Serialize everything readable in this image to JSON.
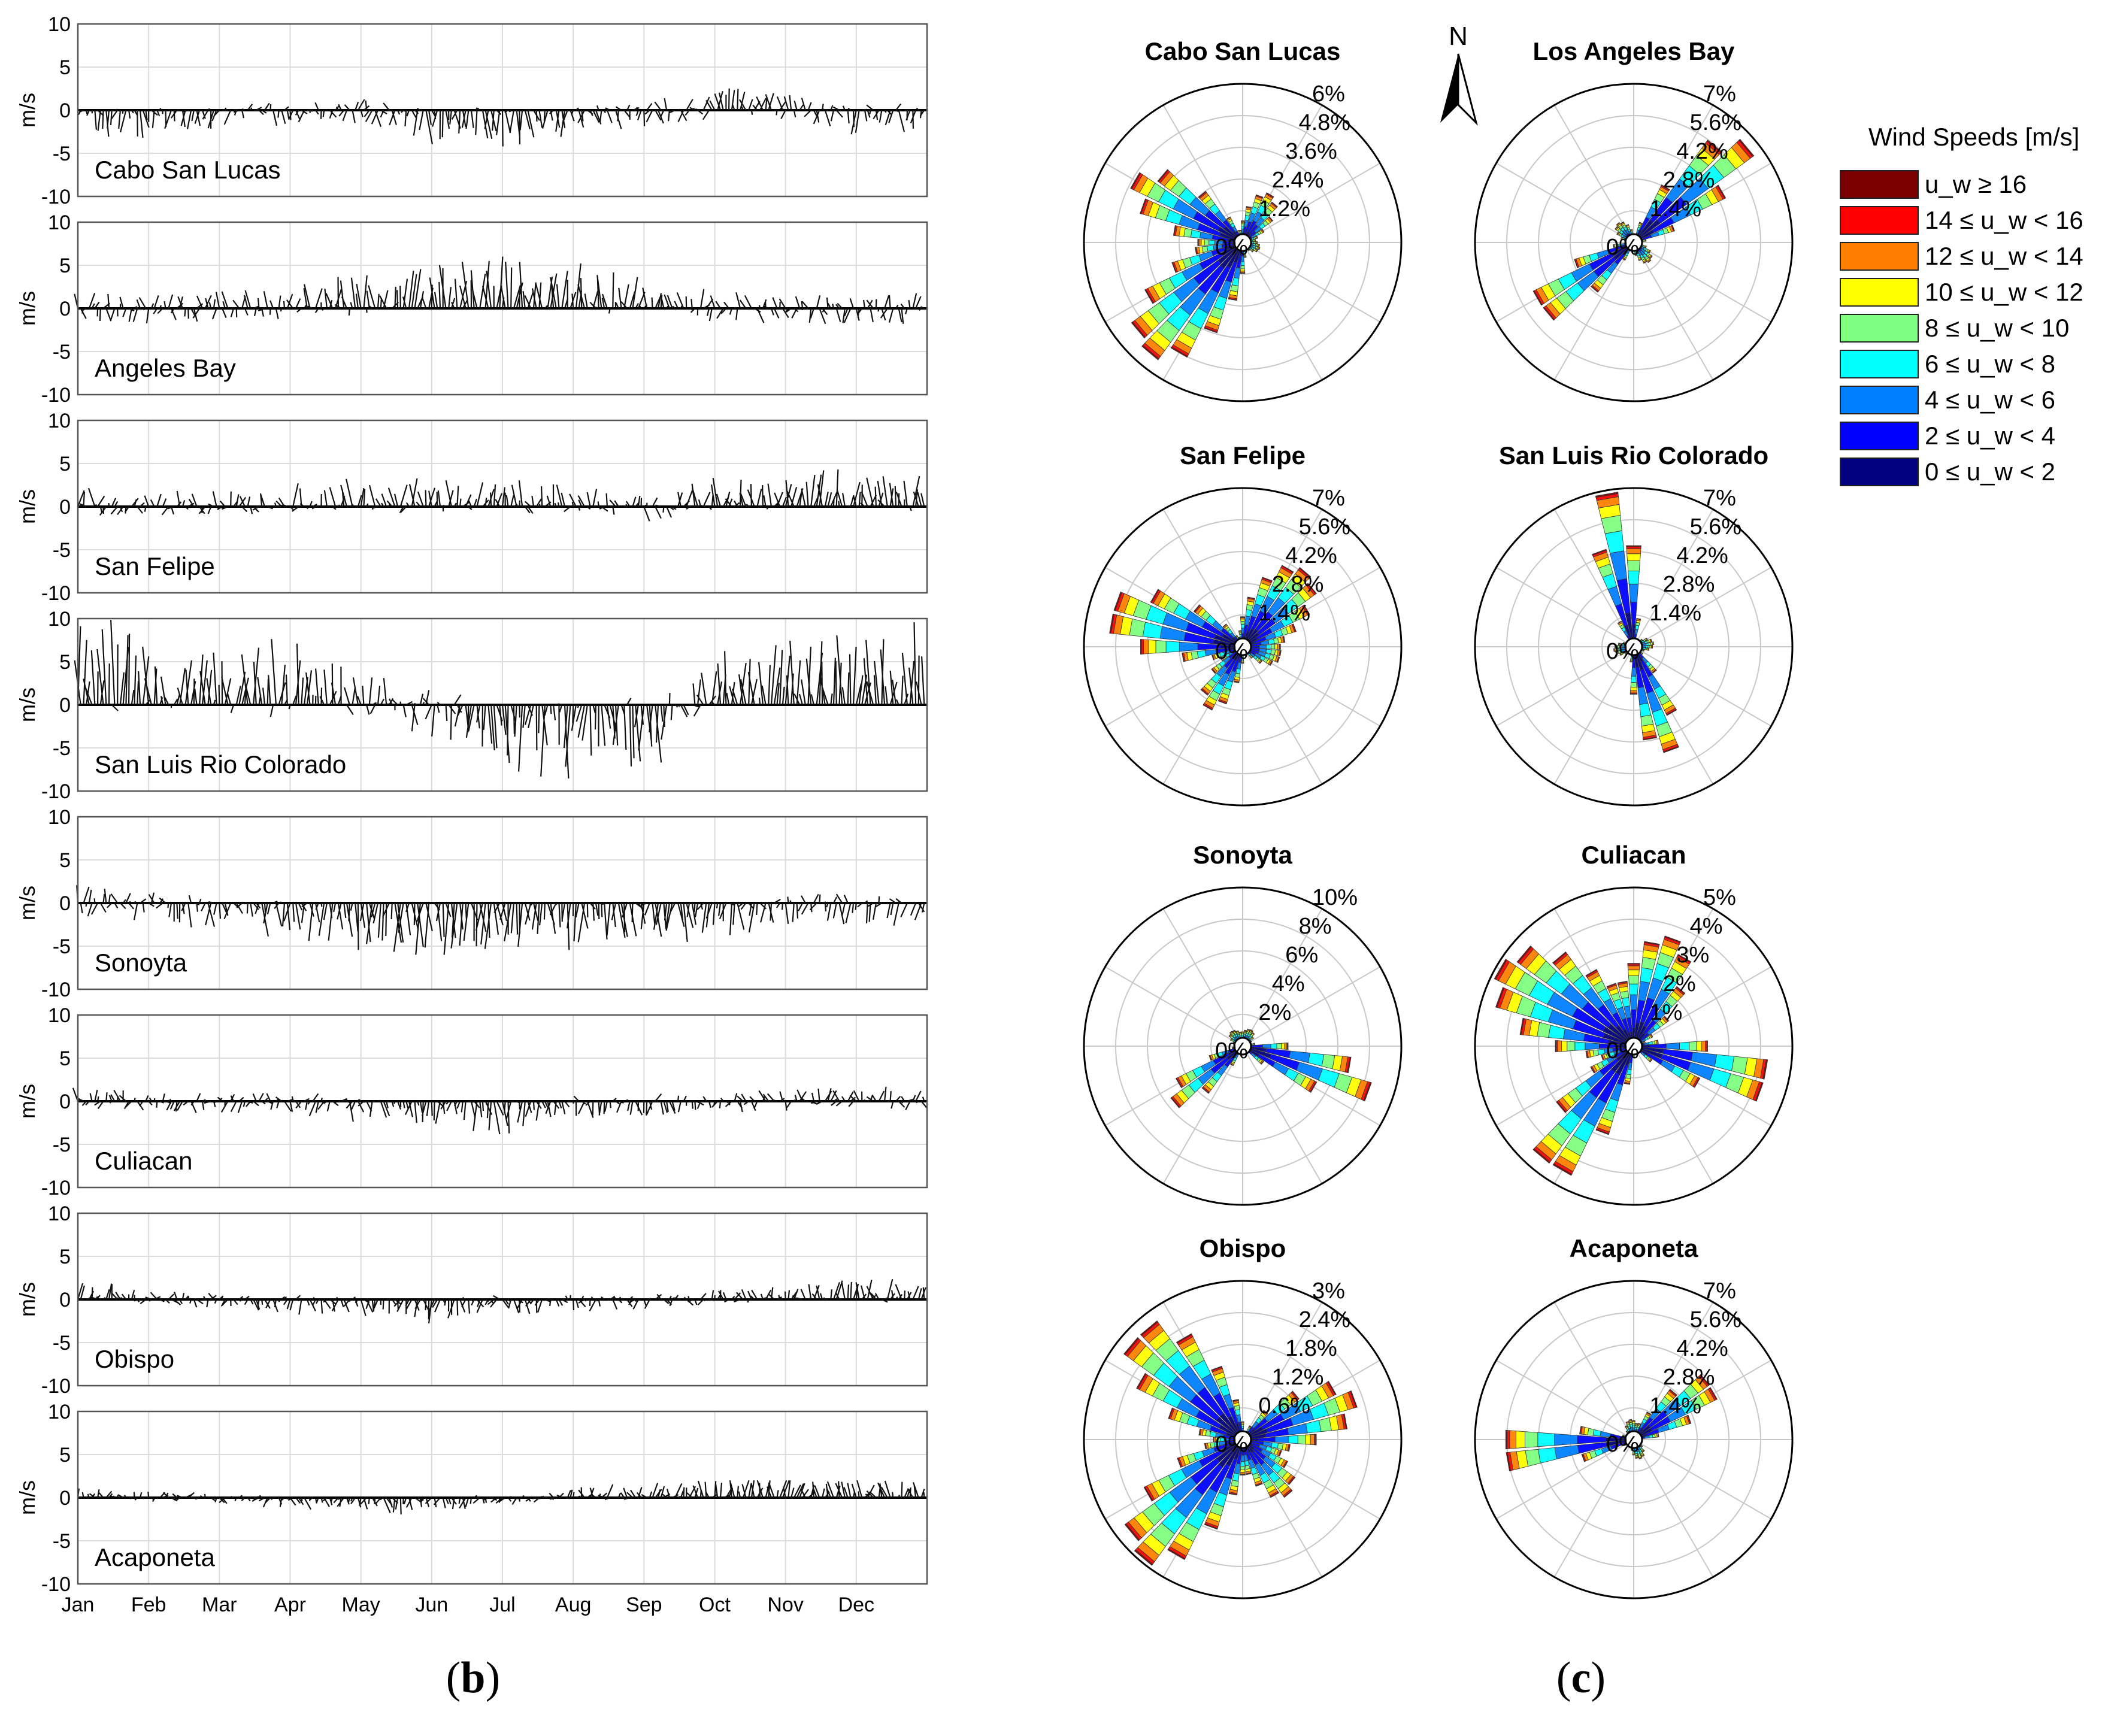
{
  "panels": {
    "left_label": "b",
    "right_label": "c"
  },
  "compass": {
    "label": "N"
  },
  "chart_data": [
    {
      "type": "line",
      "subtype": "wind-stick-timeseries",
      "title": "",
      "xlabel": "",
      "ylabel": "m/s",
      "x_ticks": [
        "Jan",
        "Feb",
        "Mar",
        "Apr",
        "May",
        "Jun",
        "Jul",
        "Aug",
        "Sep",
        "Oct",
        "Nov",
        "Dec"
      ],
      "ylim": [
        -10,
        10
      ],
      "y_ticks": [
        10,
        5,
        0,
        -5,
        -10
      ],
      "grid": true,
      "series": [
        {
          "name": "Cabo San Lucas",
          "month_mean_v": [
            -1.5,
            -1.5,
            -1.0,
            -0.5,
            0,
            -2.0,
            -2.5,
            -1.5,
            -0.5,
            1.0,
            0.5,
            -1.0
          ],
          "max_amplitude": 5
        },
        {
          "name": "Angeles Bay",
          "month_mean_v": [
            0,
            0,
            0.3,
            0.5,
            2.5,
            3.0,
            3.5,
            3.0,
            2.5,
            0.5,
            0,
            0
          ],
          "max_amplitude": 6
        },
        {
          "name": "San Felipe",
          "month_mean_v": [
            0.5,
            0.5,
            0.5,
            1.0,
            1.5,
            1.5,
            1.5,
            1.0,
            -0.5,
            1.5,
            2.0,
            2.5
          ],
          "max_amplitude": 5
        },
        {
          "name": "San Luis Rio Colorado",
          "month_mean_v": [
            6.0,
            5.0,
            4.0,
            3.5,
            2.0,
            -1.0,
            -4.0,
            -5.0,
            -4.0,
            3.0,
            5.0,
            5.5
          ],
          "max_amplitude": 10
        },
        {
          "name": "Sonoyta",
          "month_mean_v": [
            0.5,
            -0.5,
            -1.5,
            -2.0,
            -3.0,
            -4.0,
            -3.5,
            -3.0,
            -2.5,
            -2.0,
            -1.0,
            -1.0
          ],
          "max_amplitude": 6
        },
        {
          "name": "Culiacan",
          "month_mean_v": [
            0.5,
            0,
            -0.3,
            -0.6,
            -1.0,
            -2.0,
            -2.0,
            -1.2,
            -0.8,
            -0.3,
            0.3,
            0.5
          ],
          "max_amplitude": 4
        },
        {
          "name": "Obispo",
          "month_mean_v": [
            1.0,
            0.5,
            -0.3,
            -0.6,
            -1.0,
            -1.5,
            -1.0,
            -0.6,
            -0.3,
            0.3,
            0.8,
            1.2
          ],
          "max_amplitude": 3
        },
        {
          "name": "Acaponeta",
          "month_mean_v": [
            0.5,
            0.3,
            -0.2,
            -0.5,
            -1.0,
            -1.2,
            -0.5,
            0.5,
            1.0,
            1.5,
            1.8,
            1.5
          ],
          "max_amplitude": 2
        }
      ]
    },
    {
      "type": "rose",
      "subtype": "wind-rose",
      "legend_title": "Wind Speeds [m/s]",
      "legend": [
        {
          "label": "u_w ≥ 16",
          "color": "#7a0000"
        },
        {
          "label": "14 ≤ u_w < 16",
          "color": "#ff0000"
        },
        {
          "label": "12 ≤ u_w < 14",
          "color": "#ff8000"
        },
        {
          "label": "10 ≤ u_w < 12",
          "color": "#ffff00"
        },
        {
          "label": "8 ≤ u_w < 10",
          "color": "#80ff80"
        },
        {
          "label": "6 ≤ u_w < 8",
          "color": "#00ffff"
        },
        {
          "label": "4 ≤ u_w < 6",
          "color": "#0080ff"
        },
        {
          "label": "2 ≤ u_w < 4",
          "color": "#0000ff"
        },
        {
          "label": "0 ≤ u_w < 2",
          "color": "#000080"
        }
      ],
      "roses": [
        {
          "name": "Cabo San Lucas",
          "rmax": 6,
          "rings": [
            "0%",
            "1.2%",
            "2.4%",
            "3.6%",
            "4.8%",
            "6%"
          ],
          "lobes": [
            {
              "dir": 222,
              "pct": 5.4,
              "spread": 55
            },
            {
              "dir": 300,
              "pct": 4.6,
              "spread": 40
            },
            {
              "dir": 30,
              "pct": 2.0,
              "spread": 50
            },
            {
              "dir": 110,
              "pct": 0.6,
              "spread": 60
            }
          ]
        },
        {
          "name": "Los Angeles Bay",
          "rmax": 7,
          "rings": [
            "0%",
            "1.4%",
            "2.8%",
            "4.2%",
            "5.6%",
            "7%"
          ],
          "lobes": [
            {
              "dir": 48,
              "pct": 6.5,
              "spread": 32
            },
            {
              "dir": 235,
              "pct": 5.2,
              "spread": 30
            },
            {
              "dir": 140,
              "pct": 1.0,
              "spread": 60
            },
            {
              "dir": 320,
              "pct": 1.0,
              "spread": 60
            }
          ]
        },
        {
          "name": "San Felipe",
          "rmax": 7,
          "rings": [
            "0%",
            "1.4%",
            "2.8%",
            "4.2%",
            "5.6%",
            "7%"
          ],
          "lobes": [
            {
              "dir": 285,
              "pct": 6.0,
              "spread": 45
            },
            {
              "dir": 40,
              "pct": 4.2,
              "spread": 60
            },
            {
              "dir": 210,
              "pct": 3.0,
              "spread": 40
            },
            {
              "dir": 110,
              "pct": 1.5,
              "spread": 50
            }
          ]
        },
        {
          "name": "San Luis Rio Colorado",
          "rmax": 7,
          "rings": [
            "0%",
            "1.4%",
            "2.8%",
            "4.2%",
            "5.6%",
            "7%"
          ],
          "lobes": [
            {
              "dir": 350,
              "pct": 6.8,
              "spread": 25
            },
            {
              "dir": 162,
              "pct": 4.8,
              "spread": 32
            },
            {
              "dir": 80,
              "pct": 0.8,
              "spread": 60
            },
            {
              "dir": 260,
              "pct": 0.8,
              "spread": 60
            }
          ]
        },
        {
          "name": "Sonoyta",
          "rmax": 10,
          "rings": [
            "0%",
            "2%",
            "4%",
            "6%",
            "8%",
            "10%"
          ],
          "lobes": [
            {
              "dir": 108,
              "pct": 8.4,
              "spread": 28
            },
            {
              "dir": 232,
              "pct": 5.5,
              "spread": 30
            },
            {
              "dir": 30,
              "pct": 1.0,
              "spread": 60
            },
            {
              "dir": 320,
              "pct": 1.0,
              "spread": 60
            }
          ]
        },
        {
          "name": "Culiacan",
          "rmax": 5,
          "rings": [
            "0%",
            "1%",
            "2%",
            "3%",
            "4%",
            "5%"
          ],
          "lobes": [
            {
              "dir": 300,
              "pct": 4.8,
              "spread": 60
            },
            {
              "dir": 105,
              "pct": 4.5,
              "spread": 30
            },
            {
              "dir": 215,
              "pct": 4.7,
              "spread": 35
            },
            {
              "dir": 20,
              "pct": 3.5,
              "spread": 50
            }
          ]
        },
        {
          "name": "Obispo",
          "rmax": 3,
          "rings": [
            "0%",
            "0.6%",
            "1.2%",
            "1.8%",
            "2.4%",
            "3%"
          ],
          "lobes": [
            {
              "dir": 315,
              "pct": 2.8,
              "spread": 50
            },
            {
              "dir": 222,
              "pct": 2.9,
              "spread": 50
            },
            {
              "dir": 70,
              "pct": 2.2,
              "spread": 45
            },
            {
              "dir": 140,
              "pct": 1.3,
              "spread": 50
            }
          ]
        },
        {
          "name": "Acaponeta",
          "rmax": 7,
          "rings": [
            "0%",
            "1.4%",
            "2.8%",
            "4.2%",
            "5.6%",
            "7%"
          ],
          "lobes": [
            {
              "dir": 265,
              "pct": 6.2,
              "spread": 25
            },
            {
              "dir": 55,
              "pct": 4.2,
              "spread": 35
            },
            {
              "dir": 160,
              "pct": 0.8,
              "spread": 60
            },
            {
              "dir": 350,
              "pct": 0.8,
              "spread": 60
            }
          ]
        }
      ]
    }
  ]
}
